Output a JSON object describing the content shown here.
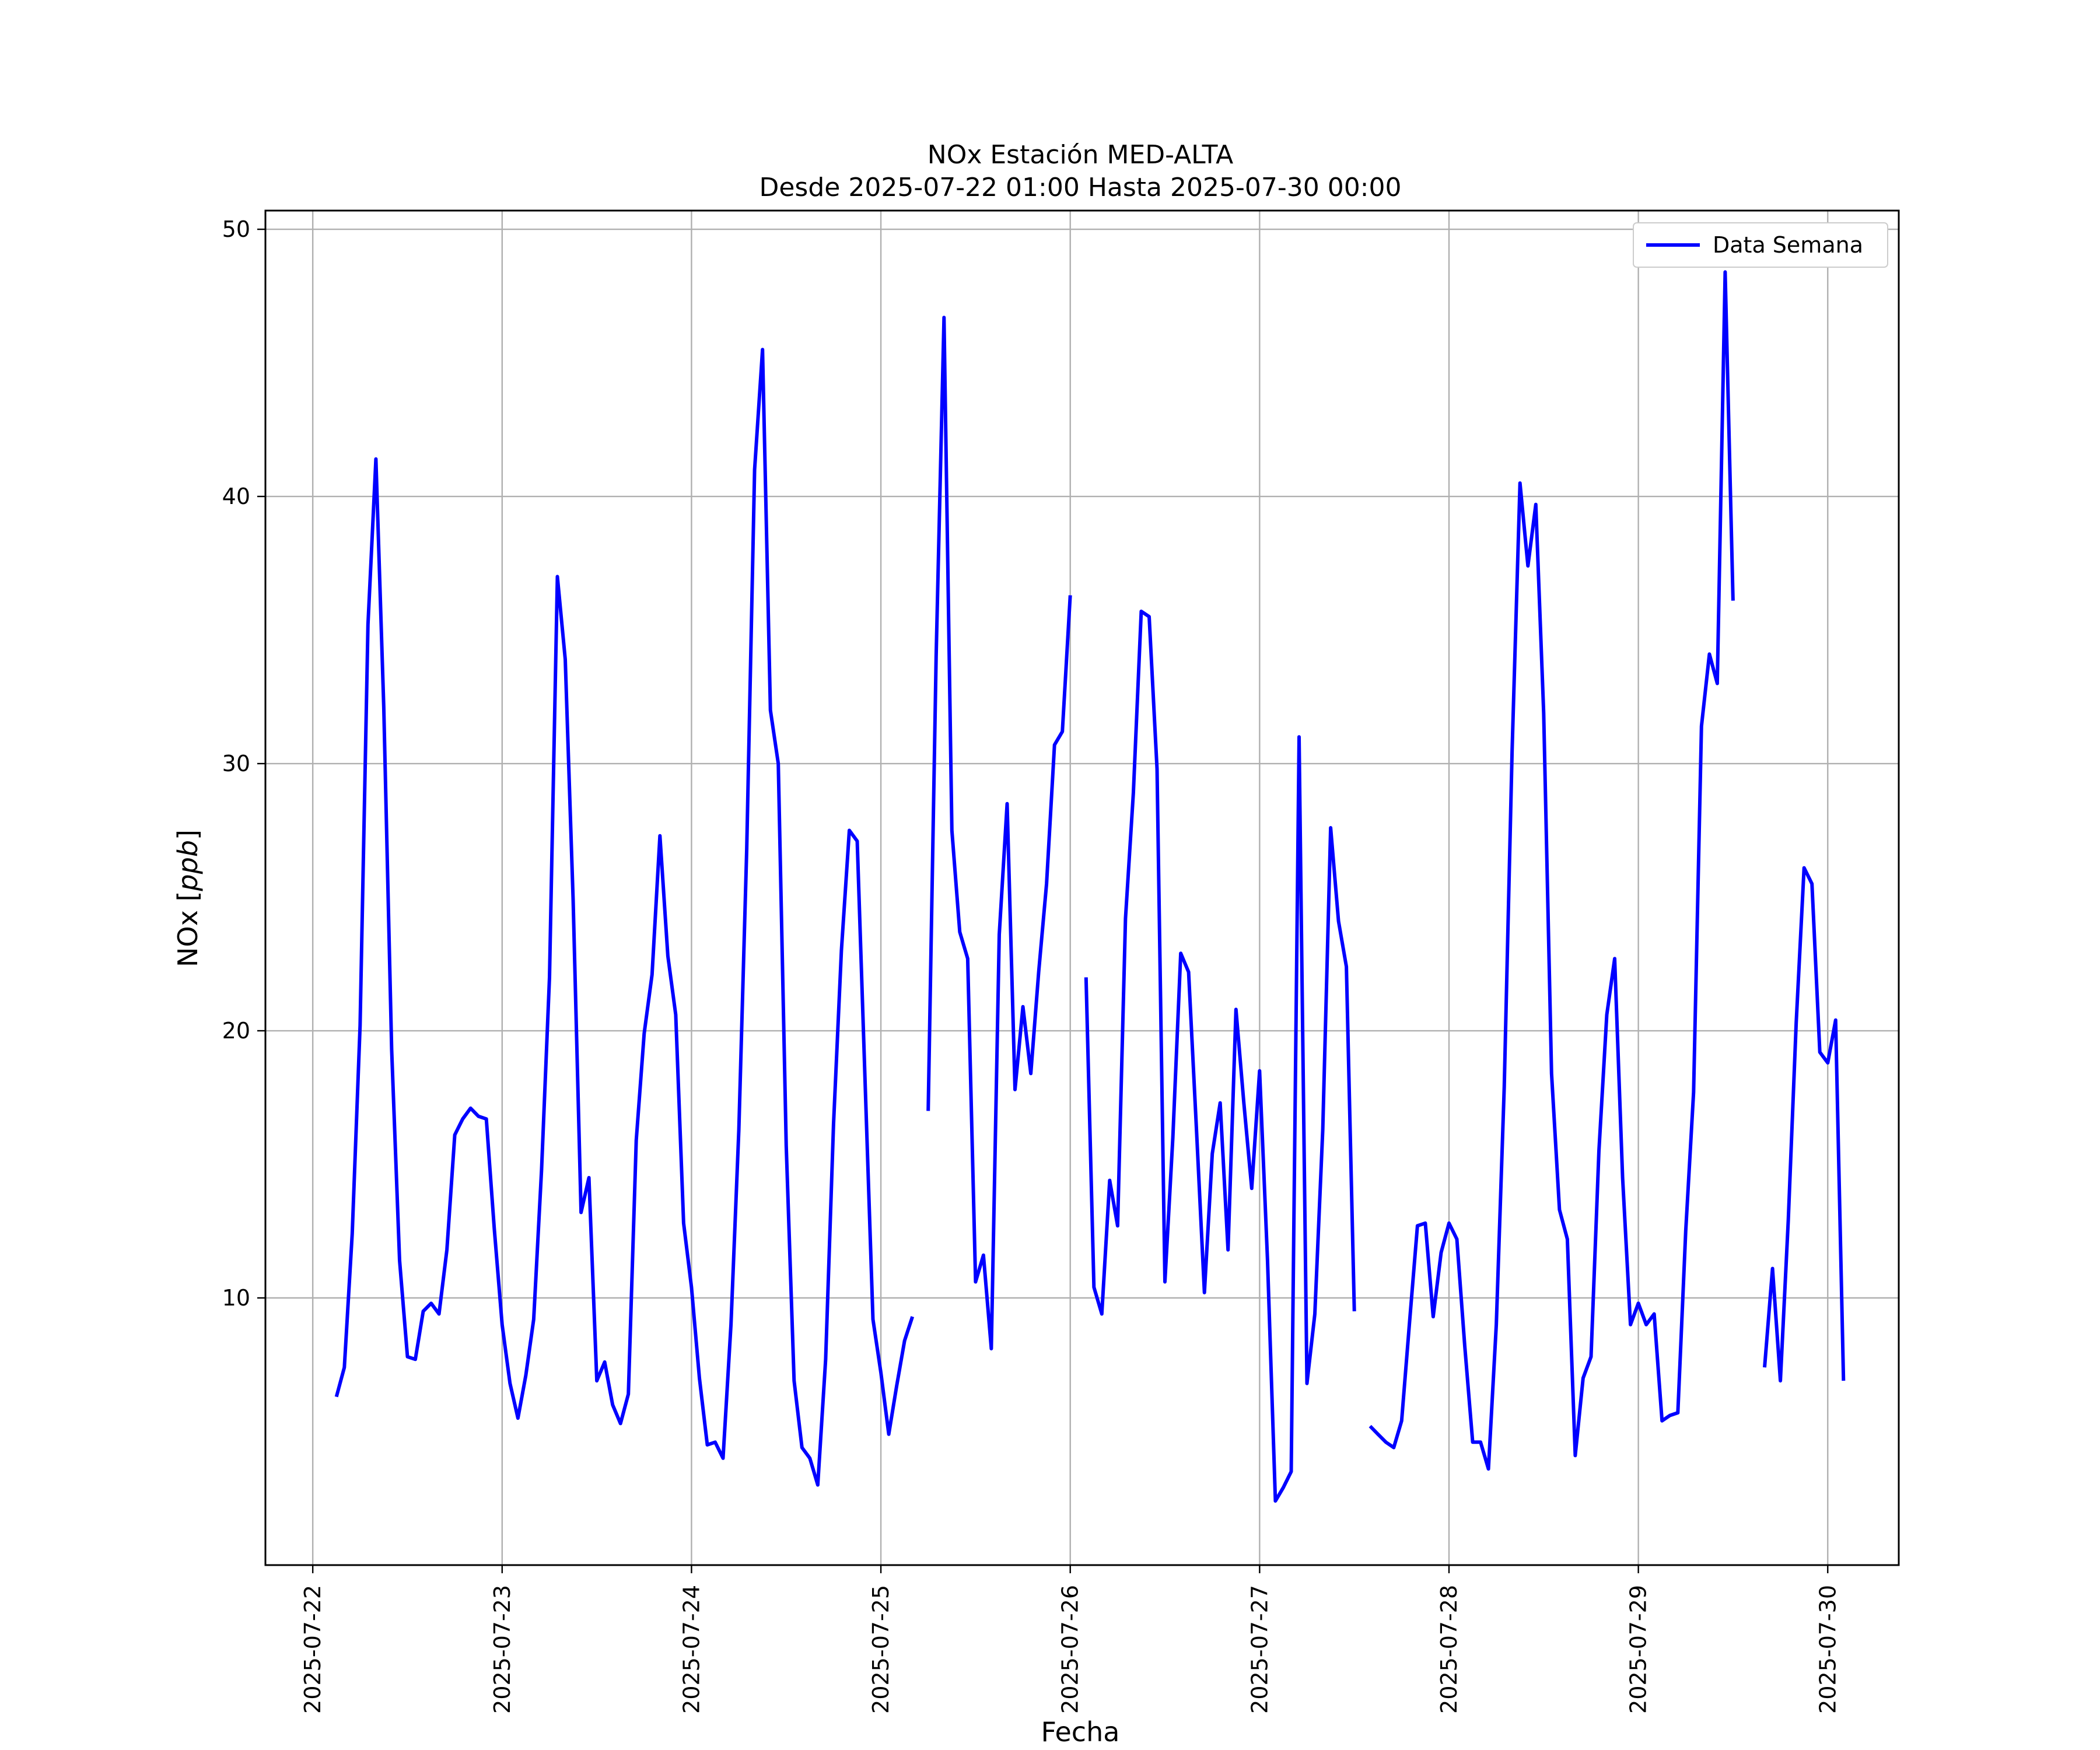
{
  "chart_data": {
    "type": "line",
    "title": "NOx Estación MED-ALTA",
    "subtitle": "Desde 2025-07-22 01:00 Hasta 2025-07-30 00:00",
    "xlabel": "Fecha",
    "ylabel_text": "NOx [",
    "ylabel_unit": "ppb",
    "ylabel_close": "]",
    "xlim": [
      "2025-07-21 18:00",
      "2025-07-30 09:00"
    ],
    "ylim": [
      0,
      50.7
    ],
    "x_ticks": [
      "2025-07-22",
      "2025-07-23",
      "2025-07-24",
      "2025-07-25",
      "2025-07-26",
      "2025-07-27",
      "2025-07-28",
      "2025-07-29",
      "2025-07-30"
    ],
    "y_ticks": [
      10,
      20,
      30,
      40,
      50
    ],
    "grid": true,
    "legend_position": "top-right",
    "line_color": "#0000ff",
    "series": [
      {
        "name": "Data Semana",
        "start": "2025-07-22 01:00",
        "step_hours": 1,
        "values": [
          null,
          null,
          6.3,
          7.4,
          12.4,
          20.2,
          35.2,
          41.4,
          32.1,
          19.3,
          11.4,
          7.8,
          7.7,
          9.5,
          9.8,
          9.4,
          11.8,
          16.1,
          16.7,
          17.1,
          16.8,
          16.7,
          12.6,
          9.0,
          6.8,
          5.5,
          7.1,
          9.2,
          14.8,
          22.0,
          37.0,
          33.9,
          24.9,
          13.2,
          14.5,
          6.9,
          7.6,
          6.0,
          5.3,
          6.4,
          15.9,
          19.9,
          22.1,
          27.3,
          22.8,
          20.6,
          12.8,
          10.4,
          7.0,
          4.5,
          4.6,
          4.0,
          9.0,
          16.3,
          26.8,
          41.0,
          45.5,
          32.0,
          30.0,
          15.7,
          6.9,
          4.4,
          4.0,
          3.0,
          7.7,
          16.5,
          23.0,
          27.5,
          27.1,
          18.1,
          9.2,
          7.2,
          4.9,
          6.7,
          8.4,
          9.3,
          null,
          17.0,
          34.0,
          46.7,
          27.5,
          23.7,
          22.7,
          10.6,
          11.6,
          8.1,
          23.6,
          28.5,
          17.8,
          20.9,
          18.4,
          22.2,
          25.5,
          30.7,
          31.2,
          36.3,
          null,
          22.0,
          10.4,
          9.4,
          14.4,
          12.7,
          24.2,
          28.9,
          35.7,
          35.5,
          29.8,
          10.6,
          16.0,
          22.9,
          22.2,
          16.3,
          10.2,
          15.4,
          17.3,
          11.8,
          20.8,
          17.3,
          14.1,
          18.5,
          11.4,
          2.4,
          2.9,
          3.5,
          31.0,
          6.8,
          9.4,
          16.3,
          27.6,
          24.1,
          22.4,
          9.5,
          null,
          5.2,
          4.9,
          4.6,
          4.4,
          5.4,
          9.1,
          12.7,
          12.8,
          9.3,
          11.7,
          12.8,
          12.2,
          8.2,
          4.6,
          4.6,
          3.6,
          9.0,
          17.9,
          30.5,
          40.5,
          37.4,
          39.7,
          31.9,
          18.4,
          13.3,
          12.2,
          4.1,
          7.0,
          7.8,
          15.5,
          20.6,
          22.7,
          14.5,
          9.0,
          9.8,
          9.0,
          9.4,
          5.4,
          5.6,
          5.7,
          12.5,
          17.7,
          31.4,
          34.1,
          33.0,
          48.4,
          36.1,
          null,
          null,
          null,
          7.4,
          11.1,
          6.9,
          12.9,
          20.3,
          26.1,
          25.5,
          19.2,
          18.8,
          20.4,
          6.9
        ]
      }
    ]
  }
}
